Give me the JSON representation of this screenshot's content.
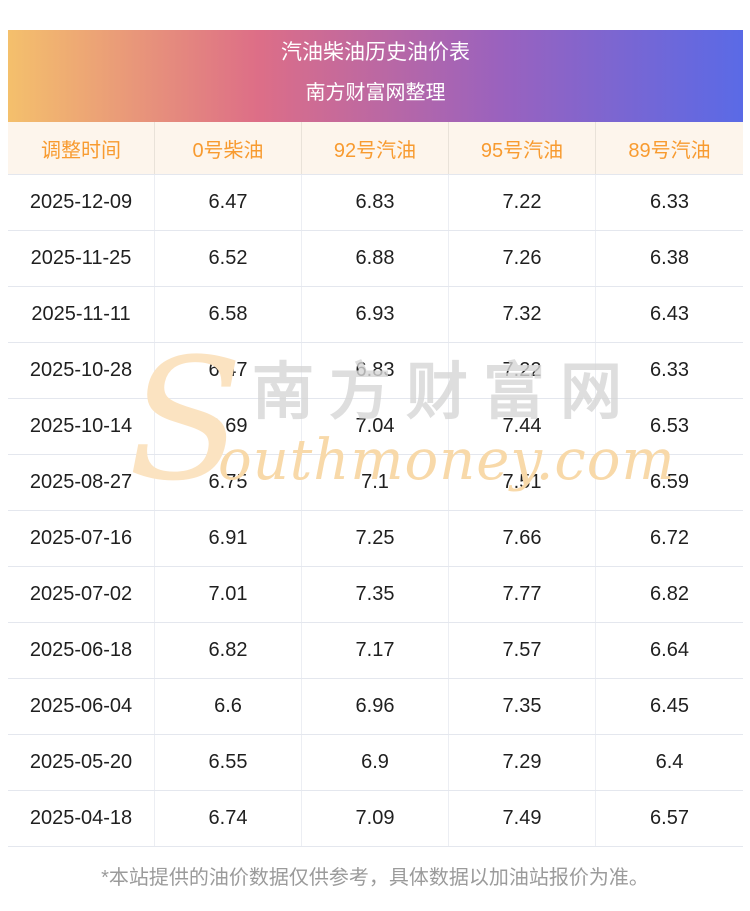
{
  "banner": {
    "title": "汽油柴油历史油价表",
    "subtitle": "南方财富网整理"
  },
  "watermark": {
    "s_glyph": "S",
    "cn_text": "南方财富网",
    "en_text": "outhmoney.com"
  },
  "footer": {
    "note": "*本站提供的油价数据仅供参考，具体数据以加油站报价为准。"
  },
  "colors": {
    "banner_gradient_start": "#f4c06c",
    "banner_gradient_mid1": "#dd6e87",
    "banner_gradient_mid2": "#9a62be",
    "banner_gradient_end": "#5a6ae6",
    "column_header_bg": "#fdf5ec",
    "column_header_text": "#f89b30",
    "cell_text": "#1f1f1f",
    "grid_line": "#e4e7ee",
    "footer_text": "#9b9b9b",
    "watermark_orange": "#f8d9a9",
    "watermark_gray": "#d6d6d6"
  },
  "chart_data": {
    "type": "table",
    "title": "汽油柴油历史油价表",
    "subtitle": "南方财富网整理",
    "columns": [
      "调整时间",
      "0号柴油",
      "92号汽油",
      "95号汽油",
      "89号汽油"
    ],
    "rows": [
      [
        "2025-12-09",
        "6.47",
        "6.83",
        "7.22",
        "6.33"
      ],
      [
        "2025-11-25",
        "6.52",
        "6.88",
        "7.26",
        "6.38"
      ],
      [
        "2025-11-11",
        "6.58",
        "6.93",
        "7.32",
        "6.43"
      ],
      [
        "2025-10-28",
        "6.47",
        "6.83",
        "7.22",
        "6.33"
      ],
      [
        "2025-10-14",
        "6.69",
        "7.04",
        "7.44",
        "6.53"
      ],
      [
        "2025-08-27",
        "6.75",
        "7.1",
        "7.51",
        "6.59"
      ],
      [
        "2025-07-16",
        "6.91",
        "7.25",
        "7.66",
        "6.72"
      ],
      [
        "2025-07-02",
        "7.01",
        "7.35",
        "7.77",
        "6.82"
      ],
      [
        "2025-06-18",
        "6.82",
        "7.17",
        "7.57",
        "6.64"
      ],
      [
        "2025-06-04",
        "6.6",
        "6.96",
        "7.35",
        "6.45"
      ],
      [
        "2025-05-20",
        "6.55",
        "6.9",
        "7.29",
        "6.4"
      ],
      [
        "2025-04-18",
        "6.74",
        "7.09",
        "7.49",
        "6.57"
      ]
    ],
    "footnote": "*本站提供的油价数据仅供参考，具体数据以加油站报价为准。"
  }
}
